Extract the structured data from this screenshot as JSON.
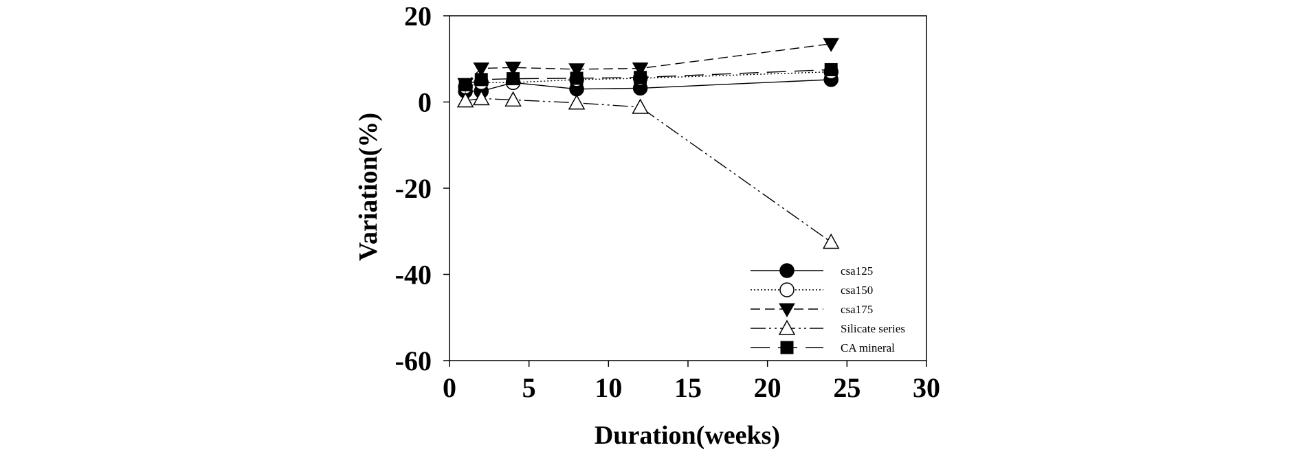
{
  "chart_data": {
    "type": "line",
    "xlabel": "Duration(weeks)",
    "ylabel": "Variation(%)",
    "xlim": [
      0,
      30
    ],
    "ylim": [
      -60,
      20
    ],
    "xticks": [
      0,
      5,
      10,
      15,
      20,
      25,
      30
    ],
    "yticks": [
      20,
      0,
      -20,
      -40,
      -60
    ],
    "grid": false,
    "legend_position": "bottom-right",
    "x": [
      1,
      2,
      4,
      8,
      12,
      24
    ],
    "series": [
      {
        "name": "csa125",
        "values": [
          2.5,
          2.5,
          4.5,
          3.0,
          3.2,
          5.2
        ],
        "marker": "circle-filled",
        "dash": "solid"
      },
      {
        "name": "csa150",
        "values": [
          3.5,
          4.5,
          4.5,
          5.2,
          5.5,
          7.0
        ],
        "marker": "circle-open",
        "dash": "dotted"
      },
      {
        "name": "csa175",
        "values": [
          4.2,
          7.8,
          8.0,
          7.6,
          7.8,
          13.5
        ],
        "marker": "triangle-down-filled",
        "dash": "dashed"
      },
      {
        "name": "Silicate series",
        "values": [
          0.3,
          0.8,
          0.5,
          -0.2,
          -1.2,
          -32.5
        ],
        "marker": "triangle-up-open",
        "dash": "dash-dot-dot"
      },
      {
        "name": "CA mineral",
        "values": [
          4.0,
          5.2,
          5.4,
          5.5,
          5.7,
          7.5
        ],
        "marker": "square-filled",
        "dash": "long-dash"
      }
    ]
  }
}
